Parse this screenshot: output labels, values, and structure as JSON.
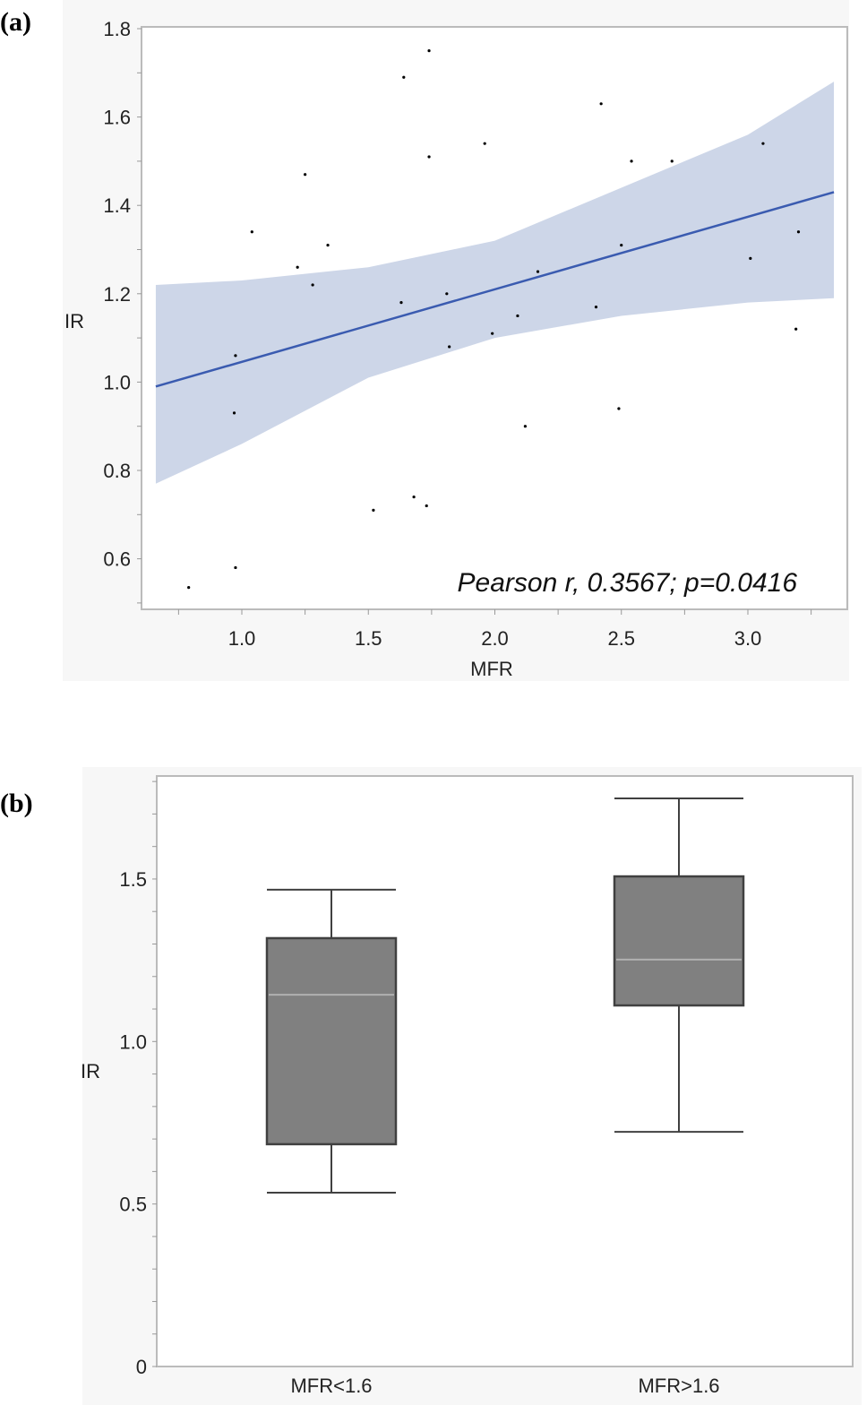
{
  "panel_labels": [
    "(a)",
    "(b)"
  ],
  "chart_data": [
    {
      "type": "scatter",
      "xlabel": "MFR",
      "ylabel": "IR",
      "xlim": [
        0.6,
        3.4
      ],
      "ylim": [
        0.5,
        1.8
      ],
      "xticks": [
        "1.0",
        "1.5",
        "2.0",
        "2.5",
        "3.0"
      ],
      "yticks": [
        "0.6",
        "0.8",
        "1.0",
        "1.2",
        "1.4",
        "1.6",
        "1.8"
      ],
      "annotation": "Pearson r, 0.3567; p=0.0416",
      "points": [
        [
          0.79,
          0.535
        ],
        [
          0.975,
          1.06
        ],
        [
          0.97,
          0.93
        ],
        [
          0.975,
          0.58
        ],
        [
          1.04,
          1.34
        ],
        [
          1.25,
          1.47
        ],
        [
          1.22,
          1.26
        ],
        [
          1.28,
          1.22
        ],
        [
          1.34,
          1.31
        ],
        [
          1.52,
          0.71
        ],
        [
          1.63,
          1.18
        ],
        [
          1.64,
          1.69
        ],
        [
          1.68,
          0.74
        ],
        [
          1.73,
          0.72
        ],
        [
          1.74,
          1.75
        ],
        [
          1.74,
          1.51
        ],
        [
          1.81,
          1.2
        ],
        [
          1.82,
          1.08
        ],
        [
          1.96,
          1.54
        ],
        [
          1.99,
          1.11
        ],
        [
          2.09,
          1.15
        ],
        [
          2.12,
          0.9
        ],
        [
          2.17,
          1.25
        ],
        [
          2.4,
          1.17
        ],
        [
          2.42,
          1.63
        ],
        [
          2.49,
          0.94
        ],
        [
          2.5,
          1.31
        ],
        [
          2.54,
          1.5
        ],
        [
          2.7,
          1.5
        ],
        [
          3.01,
          1.28
        ],
        [
          3.06,
          1.54
        ],
        [
          3.19,
          1.12
        ],
        [
          3.2,
          1.34
        ]
      ],
      "fit_line": [
        [
          0.66,
          0.99
        ],
        [
          3.34,
          1.43
        ]
      ],
      "confidence_band": {
        "x": [
          0.66,
          1.0,
          1.5,
          2.0,
          2.5,
          3.0,
          3.34
        ],
        "upper": [
          1.22,
          1.23,
          1.26,
          1.32,
          1.44,
          1.56,
          1.68
        ],
        "lower": [
          0.77,
          0.86,
          1.01,
          1.1,
          1.15,
          1.18,
          1.19
        ]
      },
      "colors": {
        "line": "#3a5bb0",
        "band": "#cdd6e8",
        "points": "#000000"
      },
      "grid": false
    },
    {
      "type": "box",
      "ylabel": "IR",
      "ylim": [
        0,
        1.8
      ],
      "yticks": [
        "0",
        "0.5",
        "1.0",
        "1.5"
      ],
      "categories": [
        "MFR<1.6",
        "MFR>1.6"
      ],
      "boxes": [
        {
          "whisker_low": 0.535,
          "q1": 0.684,
          "median": 1.144,
          "q3": 1.318,
          "whisker_high": 1.467
        },
        {
          "whisker_low": 0.722,
          "q1": 1.111,
          "median": 1.252,
          "q3": 1.508,
          "whisker_high": 1.748
        }
      ],
      "colors": {
        "box": "#808080",
        "median": "#b0b0b0",
        "outline": "#404040"
      },
      "grid": false
    }
  ]
}
